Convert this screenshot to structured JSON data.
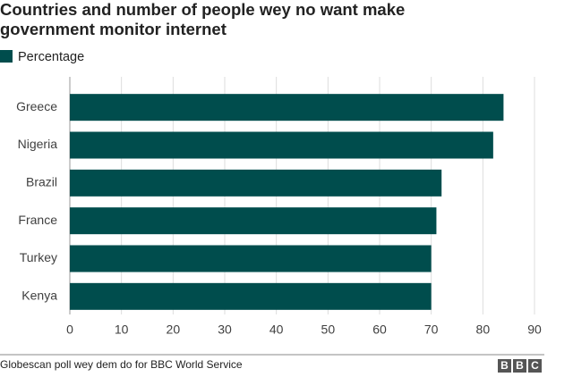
{
  "chart_data": {
    "type": "bar",
    "orientation": "horizontal",
    "title": "Countries and number of people wey no want make government monitor internet",
    "categories": [
      "Greece",
      "Nigeria",
      "Brazil",
      "France",
      "Turkey",
      "Kenya"
    ],
    "series": [
      {
        "name": "Percentage",
        "color": "#004d4d",
        "values": [
          84,
          82,
          72,
          71,
          70,
          70
        ]
      }
    ],
    "xlim": [
      0,
      90
    ],
    "xticks": [
      0,
      10,
      20,
      30,
      40,
      50,
      60,
      70,
      80,
      90
    ],
    "grid": true,
    "source": "Globescan poll wey dem do for BBC World Service",
    "logo": [
      "B",
      "B",
      "C"
    ]
  }
}
